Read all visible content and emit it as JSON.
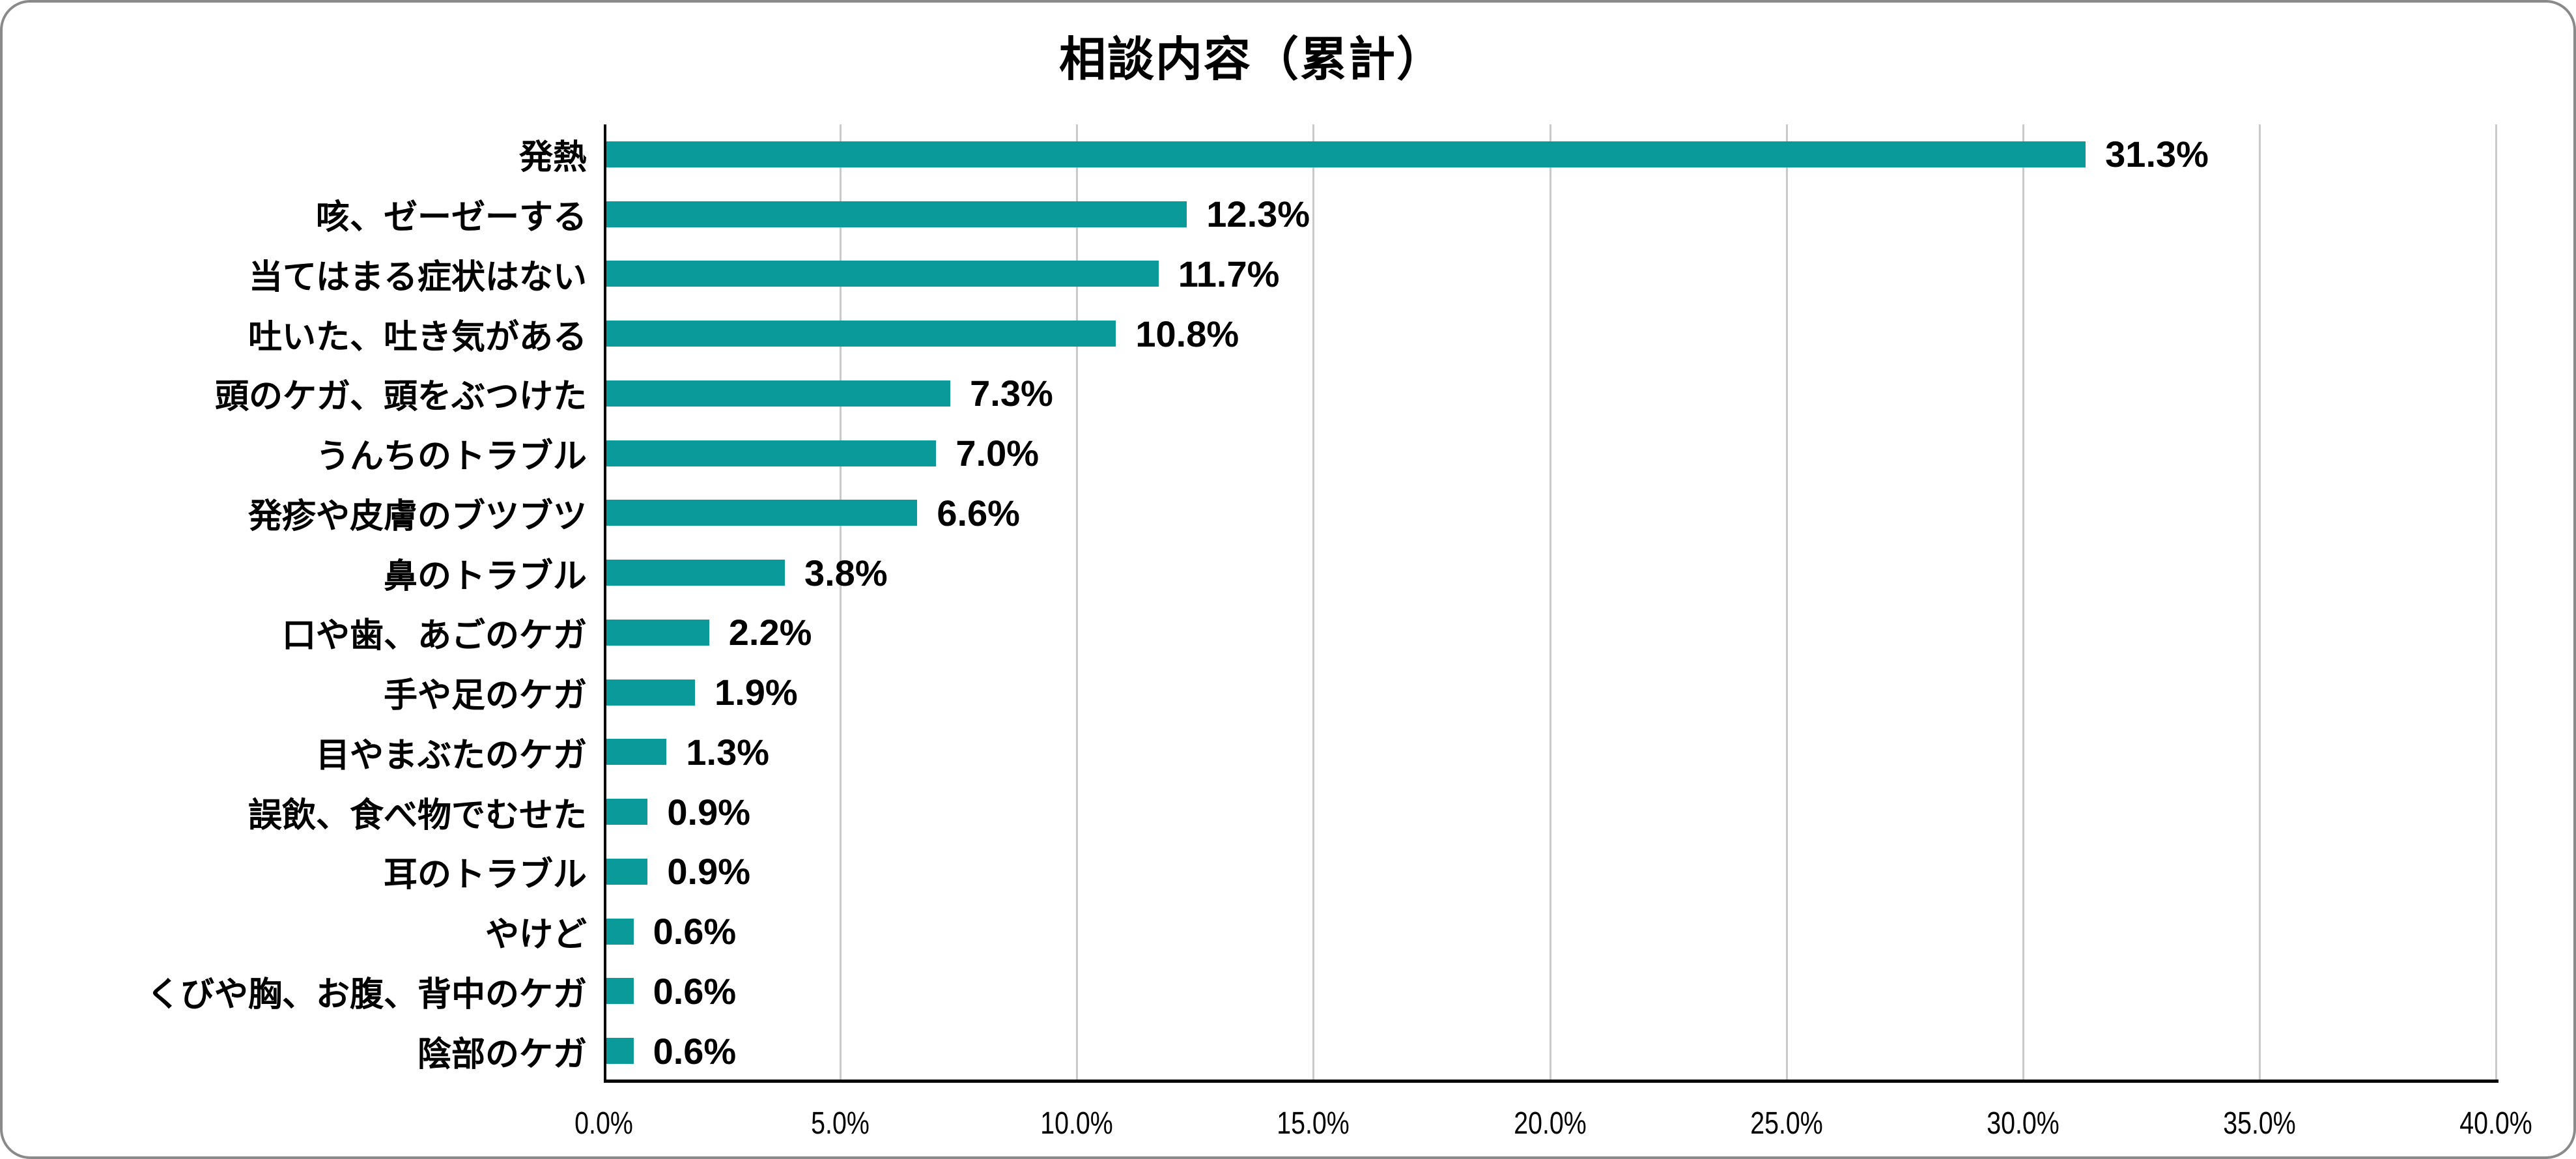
{
  "title": "相談内容（累計）",
  "colors": {
    "bar": "#0a9a9a",
    "axis": "#000000",
    "gridline": "#c9c9c9",
    "frame_border": "#8a8a8a",
    "text": "#000000"
  },
  "chart_data": {
    "type": "bar",
    "orientation": "horizontal",
    "title": "相談内容（累計）",
    "categories": [
      "発熱",
      "咳、ゼーゼーする",
      "当てはまる症状はない",
      "吐いた、吐き気がある",
      "頭のケガ、頭をぶつけた",
      "うんちのトラブル",
      "発疹や皮膚のブツブツ",
      "鼻のトラブル",
      "口や歯、あごのケガ",
      "手や足のケガ",
      "目やまぶたのケガ",
      "誤飲、食べ物でむせた",
      "耳のトラブル",
      "やけど",
      "くびや胸、お腹、背中のケガ",
      "陰部のケガ"
    ],
    "values": [
      31.3,
      12.3,
      11.7,
      10.8,
      7.3,
      7.0,
      6.6,
      3.8,
      2.2,
      1.9,
      1.3,
      0.9,
      0.9,
      0.6,
      0.6,
      0.6
    ],
    "value_labels": [
      "31.3%",
      "12.3%",
      "11.7%",
      "10.8%",
      "7.3%",
      "7.0%",
      "6.6%",
      "3.8%",
      "2.2%",
      "1.9%",
      "1.3%",
      "0.9%",
      "0.9%",
      "0.6%",
      "0.6%",
      "0.6%"
    ],
    "xlabel": "",
    "ylabel": "",
    "xlim": [
      0,
      40
    ],
    "x_tick_step": 5,
    "x_tick_labels": [
      "0.0%",
      "5.0%",
      "10.0%",
      "15.0%",
      "20.0%",
      "25.0%",
      "30.0%",
      "35.0%",
      "40.0%"
    ],
    "grid": "vertical-only",
    "legend": "none",
    "data_labels": "outside-end"
  }
}
